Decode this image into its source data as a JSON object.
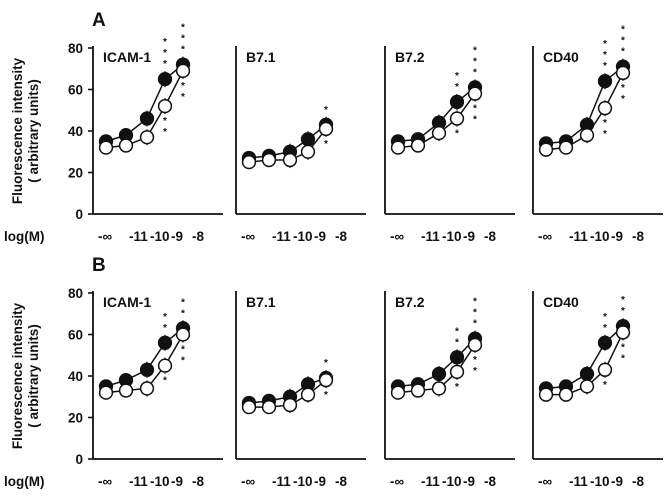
{
  "chart_data": [
    {
      "type": "line",
      "panel_label": "A",
      "ylabel": [
        "Fluorescence intensity",
        "( arbitrary units)"
      ],
      "xlabel": "log(M)",
      "x_ticks": [
        "-∞",
        "-11",
        "-10",
        "-9",
        "-8"
      ],
      "x_tick_line": "-∞ -11-10-9 -8",
      "y_ticks": [
        "0",
        "20",
        "40",
        "60",
        "80"
      ],
      "ylim": [
        0,
        80
      ],
      "series_styles": {
        "filled": "#111111",
        "open": "#ffffff"
      },
      "subplots": [
        {
          "title": "ICAM-1",
          "series": [
            {
              "marker": "filled",
              "values": [
                35,
                38,
                46,
                65,
                72
              ]
            },
            {
              "marker": "open",
              "values": [
                32,
                33,
                37,
                52,
                69
              ]
            }
          ],
          "stars": [
            {
              "x": 3,
              "side": "above",
              "count": 3
            },
            {
              "x": 4,
              "side": "above",
              "count": 3
            },
            {
              "x": 3,
              "side": "below",
              "count": 2
            },
            {
              "x": 4,
              "side": "below",
              "count": 2
            }
          ]
        },
        {
          "title": "B7.1",
          "series": [
            {
              "marker": "filled",
              "values": [
                27,
                28,
                30,
                36,
                43
              ]
            },
            {
              "marker": "open",
              "values": [
                25,
                26,
                26,
                30,
                41
              ]
            }
          ],
          "stars": [
            {
              "x": 4,
              "side": "above",
              "count": 1
            },
            {
              "x": 4,
              "side": "below",
              "count": 1
            }
          ]
        },
        {
          "title": "B7.2",
          "series": [
            {
              "marker": "filled",
              "values": [
                35,
                36,
                44,
                54,
                61
              ]
            },
            {
              "marker": "open",
              "values": [
                32,
                33,
                39,
                46,
                58
              ]
            }
          ],
          "stars": [
            {
              "x": 3,
              "side": "above",
              "count": 2
            },
            {
              "x": 4,
              "side": "above",
              "count": 3
            },
            {
              "x": 3,
              "side": "below",
              "count": 1
            },
            {
              "x": 4,
              "side": "below",
              "count": 2
            }
          ]
        },
        {
          "title": "CD40",
          "series": [
            {
              "marker": "filled",
              "values": [
                34,
                35,
                43,
                64,
                71
              ]
            },
            {
              "marker": "open",
              "values": [
                31,
                32,
                38,
                51,
                68
              ]
            }
          ],
          "stars": [
            {
              "x": 3,
              "side": "above",
              "count": 3
            },
            {
              "x": 4,
              "side": "above",
              "count": 3
            },
            {
              "x": 3,
              "side": "below",
              "count": 2
            },
            {
              "x": 4,
              "side": "below",
              "count": 2
            }
          ]
        }
      ]
    },
    {
      "type": "line",
      "panel_label": "B",
      "ylabel": [
        "Fluorescence intensity",
        "( arbitrary units)"
      ],
      "xlabel": "log(M)",
      "x_ticks": [
        "-∞",
        "-11",
        "-10",
        "-9",
        "-8"
      ],
      "x_tick_line": "-∞ -11-10-9 -8",
      "y_ticks": [
        "0",
        "20",
        "40",
        "60",
        "80"
      ],
      "ylim": [
        0,
        80
      ],
      "series_styles": {
        "filled": "#111111",
        "open": "#ffffff"
      },
      "subplots": [
        {
          "title": "ICAM-1",
          "series": [
            {
              "marker": "filled",
              "values": [
                35,
                38,
                43,
                56,
                63
              ]
            },
            {
              "marker": "open",
              "values": [
                32,
                33,
                34,
                45,
                60
              ]
            }
          ],
          "stars": [
            {
              "x": 3,
              "side": "above",
              "count": 2
            },
            {
              "x": 4,
              "side": "above",
              "count": 2
            },
            {
              "x": 3,
              "side": "below",
              "count": 1
            },
            {
              "x": 4,
              "side": "below",
              "count": 2
            }
          ]
        },
        {
          "title": "B7.1",
          "series": [
            {
              "marker": "filled",
              "values": [
                27,
                28,
                30,
                36,
                39
              ]
            },
            {
              "marker": "open",
              "values": [
                25,
                25,
                26,
                31,
                38
              ]
            }
          ],
          "stars": [
            {
              "x": 4,
              "side": "above",
              "count": 1
            },
            {
              "x": 4,
              "side": "below",
              "count": 1
            }
          ]
        },
        {
          "title": "B7.2",
          "series": [
            {
              "marker": "filled",
              "values": [
                35,
                36,
                41,
                49,
                58
              ]
            },
            {
              "marker": "open",
              "values": [
                32,
                33,
                34,
                42,
                55
              ]
            }
          ],
          "stars": [
            {
              "x": 3,
              "side": "above",
              "count": 2
            },
            {
              "x": 4,
              "side": "above",
              "count": 3
            },
            {
              "x": 3,
              "side": "below",
              "count": 1
            },
            {
              "x": 4,
              "side": "below",
              "count": 2
            }
          ]
        },
        {
          "title": "CD40",
          "series": [
            {
              "marker": "filled",
              "values": [
                34,
                35,
                41,
                56,
                64
              ]
            },
            {
              "marker": "open",
              "values": [
                31,
                31,
                35,
                43,
                61
              ]
            }
          ],
          "stars": [
            {
              "x": 3,
              "side": "above",
              "count": 2
            },
            {
              "x": 4,
              "side": "above",
              "count": 2
            },
            {
              "x": 3,
              "side": "below",
              "count": 1
            },
            {
              "x": 4,
              "side": "below",
              "count": 2
            }
          ]
        }
      ]
    }
  ]
}
